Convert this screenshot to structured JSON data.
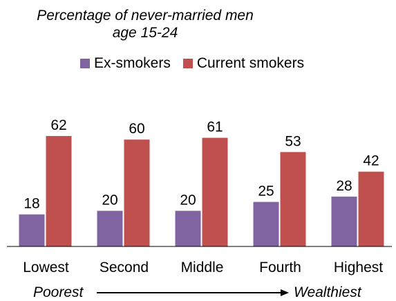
{
  "chart_data": {
    "type": "bar",
    "title": "Percentage of never-married men",
    "subtitle": "age 15-24",
    "categories": [
      "Lowest",
      "Second",
      "Middle",
      "Fourth",
      "Highest"
    ],
    "series": [
      {
        "name": "Ex-smokers",
        "values": [
          18,
          20,
          20,
          25,
          28
        ],
        "color": "#8064A2"
      },
      {
        "name": "Current smokers",
        "values": [
          62,
          60,
          61,
          53,
          42
        ],
        "color": "#C0504D"
      }
    ],
    "ylim": [
      0,
      70
    ],
    "grid": false,
    "legend": "top",
    "axis_note": {
      "left": "Poorest",
      "right": "Wealthiest"
    }
  }
}
